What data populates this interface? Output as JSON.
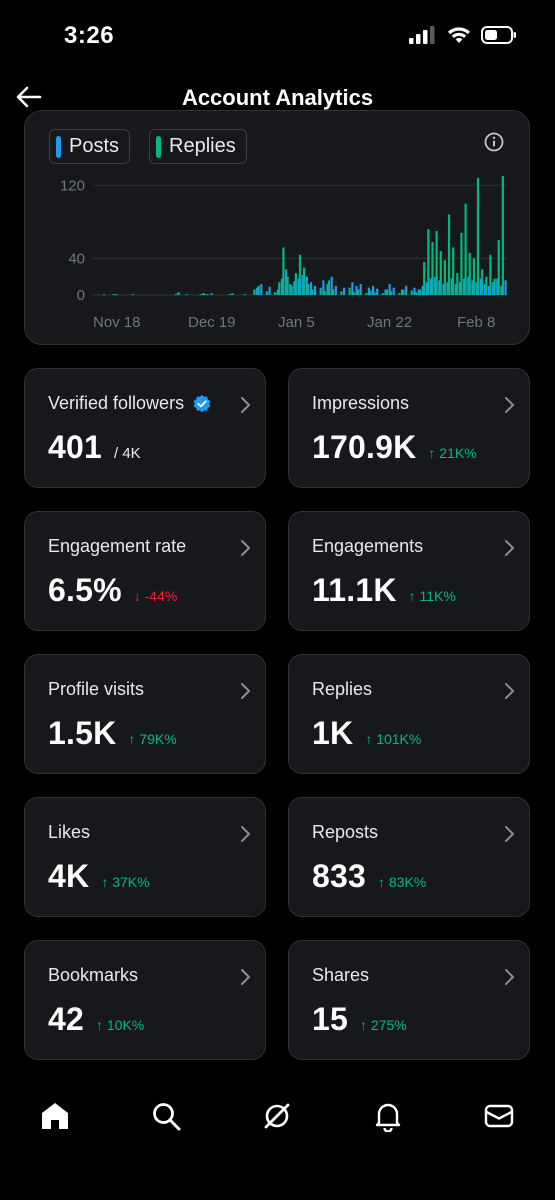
{
  "status_bar": {
    "time": "3:26"
  },
  "header": {
    "title": "Account Analytics"
  },
  "chart_data": {
    "type": "bar",
    "series": [
      {
        "name": "Posts",
        "color": "#1d9bf0"
      },
      {
        "name": "Replies",
        "color": "#00ba7c"
      }
    ],
    "yticks": [
      "120",
      "40",
      "0"
    ],
    "ytick_values": [
      120,
      40,
      0
    ],
    "xticks": [
      "Nov 18",
      "Dec 19",
      "Jan 5",
      "Jan 22",
      "Feb 8"
    ],
    "ylim": [
      0,
      140
    ],
    "grid": true,
    "bars": [
      {
        "day": 2,
        "posts": 1,
        "replies": 0
      },
      {
        "day": 5,
        "posts": 1,
        "replies": 1
      },
      {
        "day": 9,
        "posts": 1,
        "replies": 0
      },
      {
        "day": 20,
        "posts": 3,
        "replies": 1
      },
      {
        "day": 22,
        "posts": 1,
        "replies": 0
      },
      {
        "day": 26,
        "posts": 2,
        "replies": 1
      },
      {
        "day": 27,
        "posts": 1,
        "replies": 1
      },
      {
        "day": 28,
        "posts": 2,
        "replies": 0
      },
      {
        "day": 33,
        "posts": 2,
        "replies": 1
      },
      {
        "day": 36,
        "posts": 1,
        "replies": 0
      },
      {
        "day": 39,
        "posts": 8,
        "replies": 6
      },
      {
        "day": 40,
        "posts": 12,
        "replies": 10
      },
      {
        "day": 42,
        "posts": 9,
        "replies": 4
      },
      {
        "day": 44,
        "posts": 6,
        "replies": 3
      },
      {
        "day": 45,
        "posts": 18,
        "replies": 14
      },
      {
        "day": 46,
        "posts": 28,
        "replies": 52
      },
      {
        "day": 47,
        "posts": 12,
        "replies": 20
      },
      {
        "day": 48,
        "posts": 15,
        "replies": 10
      },
      {
        "day": 49,
        "posts": 18,
        "replies": 24
      },
      {
        "day": 50,
        "posts": 22,
        "replies": 44
      },
      {
        "day": 51,
        "posts": 20,
        "replies": 30
      },
      {
        "day": 52,
        "posts": 14,
        "replies": 12
      },
      {
        "day": 53,
        "posts": 10,
        "replies": 6
      },
      {
        "day": 55,
        "posts": 16,
        "replies": 8
      },
      {
        "day": 56,
        "posts": 12,
        "replies": 4
      },
      {
        "day": 57,
        "posts": 20,
        "replies": 16
      },
      {
        "day": 58,
        "posts": 10,
        "replies": 6
      },
      {
        "day": 60,
        "posts": 8,
        "replies": 4
      },
      {
        "day": 62,
        "posts": 14,
        "replies": 8
      },
      {
        "day": 63,
        "posts": 10,
        "replies": 3
      },
      {
        "day": 64,
        "posts": 12,
        "replies": 6
      },
      {
        "day": 66,
        "posts": 8,
        "replies": 2
      },
      {
        "day": 67,
        "posts": 10,
        "replies": 5
      },
      {
        "day": 68,
        "posts": 7,
        "replies": 3
      },
      {
        "day": 70,
        "posts": 6,
        "replies": 2
      },
      {
        "day": 71,
        "posts": 12,
        "replies": 6
      },
      {
        "day": 72,
        "posts": 8,
        "replies": 4
      },
      {
        "day": 74,
        "posts": 6,
        "replies": 2
      },
      {
        "day": 75,
        "posts": 10,
        "replies": 6
      },
      {
        "day": 77,
        "posts": 8,
        "replies": 5
      },
      {
        "day": 78,
        "posts": 6,
        "replies": 3
      },
      {
        "day": 79,
        "posts": 10,
        "replies": 6
      },
      {
        "day": 80,
        "posts": 14,
        "replies": 36
      },
      {
        "day": 81,
        "posts": 18,
        "replies": 72
      },
      {
        "day": 82,
        "posts": 20,
        "replies": 58
      },
      {
        "day": 83,
        "posts": 16,
        "replies": 70
      },
      {
        "day": 84,
        "posts": 12,
        "replies": 48
      },
      {
        "day": 85,
        "posts": 14,
        "replies": 38
      },
      {
        "day": 86,
        "posts": 18,
        "replies": 88
      },
      {
        "day": 87,
        "posts": 12,
        "replies": 52
      },
      {
        "day": 88,
        "posts": 14,
        "replies": 24
      },
      {
        "day": 89,
        "posts": 18,
        "replies": 68
      },
      {
        "day": 90,
        "posts": 20,
        "replies": 100
      },
      {
        "day": 91,
        "posts": 16,
        "replies": 46
      },
      {
        "day": 92,
        "posts": 14,
        "replies": 40
      },
      {
        "day": 93,
        "posts": 18,
        "replies": 128
      },
      {
        "day": 94,
        "posts": 12,
        "replies": 28
      },
      {
        "day": 95,
        "posts": 10,
        "replies": 20
      },
      {
        "day": 96,
        "posts": 14,
        "replies": 44
      },
      {
        "day": 97,
        "posts": 18,
        "replies": 18
      },
      {
        "day": 98,
        "posts": 10,
        "replies": 60
      },
      {
        "day": 99,
        "posts": 16,
        "replies": 130
      }
    ]
  },
  "metrics": [
    {
      "label": "Verified followers",
      "value": "401",
      "sub": "/ 4K",
      "delta": "",
      "direction": "none",
      "verified": true
    },
    {
      "label": "Impressions",
      "value": "170.9K",
      "sub": "",
      "delta": "↑ 21K%",
      "direction": "up",
      "verified": false
    },
    {
      "label": "Engagement rate",
      "value": "6.5%",
      "sub": "",
      "delta": "↓ -44%",
      "direction": "down",
      "verified": false
    },
    {
      "label": "Engagements",
      "value": "11.1K",
      "sub": "",
      "delta": "↑ 11K%",
      "direction": "up",
      "verified": false
    },
    {
      "label": "Profile visits",
      "value": "1.5K",
      "sub": "",
      "delta": "↑ 79K%",
      "direction": "up",
      "verified": false
    },
    {
      "label": "Replies",
      "value": "1K",
      "sub": "",
      "delta": "↑ 101K%",
      "direction": "up",
      "verified": false
    },
    {
      "label": "Likes",
      "value": "4K",
      "sub": "",
      "delta": "↑ 37K%",
      "direction": "up",
      "verified": false
    },
    {
      "label": "Reposts",
      "value": "833",
      "sub": "",
      "delta": "↑ 83K%",
      "direction": "up",
      "verified": false
    },
    {
      "label": "Bookmarks",
      "value": "42",
      "sub": "",
      "delta": "↑ 10K%",
      "direction": "up",
      "verified": false
    },
    {
      "label": "Shares",
      "value": "15",
      "sub": "",
      "delta": "↑ 275%",
      "direction": "up",
      "verified": false
    }
  ],
  "bottom_nav": [
    {
      "icon": "home-icon"
    },
    {
      "icon": "search-icon"
    },
    {
      "icon": "grok-icon"
    },
    {
      "icon": "bell-icon"
    },
    {
      "icon": "mail-icon"
    }
  ],
  "colors": {
    "background": "#000000",
    "card": "#16181c",
    "border": "#2f3336",
    "posts": "#1d9bf0",
    "replies": "#00ba7c",
    "positive": "#00ba7c",
    "negative": "#f4212e",
    "verified": "#1d9bf0"
  }
}
